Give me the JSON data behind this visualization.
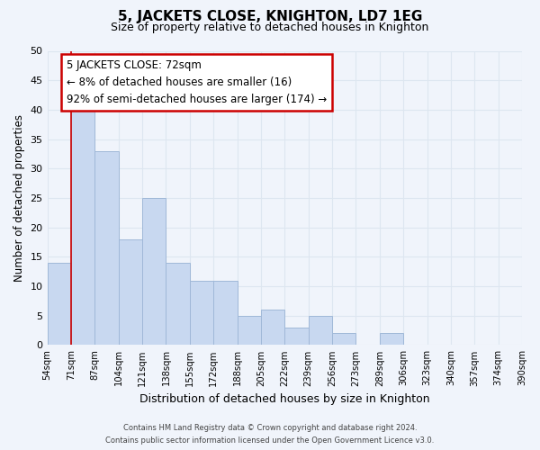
{
  "title": "5, JACKETS CLOSE, KNIGHTON, LD7 1EG",
  "subtitle": "Size of property relative to detached houses in Knighton",
  "xlabel": "Distribution of detached houses by size in Knighton",
  "ylabel": "Number of detached properties",
  "bin_labels": [
    "54sqm",
    "71sqm",
    "87sqm",
    "104sqm",
    "121sqm",
    "138sqm",
    "155sqm",
    "172sqm",
    "188sqm",
    "205sqm",
    "222sqm",
    "239sqm",
    "256sqm",
    "273sqm",
    "289sqm",
    "306sqm",
    "323sqm",
    "340sqm",
    "357sqm",
    "374sqm",
    "390sqm"
  ],
  "bar_values": [
    14,
    40,
    33,
    18,
    25,
    14,
    11,
    11,
    5,
    6,
    3,
    5,
    2,
    0,
    2,
    0,
    0,
    0,
    0,
    0
  ],
  "bar_color": "#c8d8f0",
  "bar_edge_color": "#a0b8d8",
  "marker_line_color": "#cc0000",
  "marker_bin_edge": 1,
  "ylim": [
    0,
    50
  ],
  "yticks": [
    0,
    5,
    10,
    15,
    20,
    25,
    30,
    35,
    40,
    45,
    50
  ],
  "annotation_line0": "5 JACKETS CLOSE: 72sqm",
  "annotation_line1": "← 8% of detached houses are smaller (16)",
  "annotation_line2": "92% of semi-detached houses are larger (174) →",
  "annotation_box_color": "#ffffff",
  "annotation_box_edge_color": "#cc0000",
  "footer_line1": "Contains HM Land Registry data © Crown copyright and database right 2024.",
  "footer_line2": "Contains public sector information licensed under the Open Government Licence v3.0.",
  "grid_color": "#dde6f0",
  "background_color": "#f0f4fb"
}
